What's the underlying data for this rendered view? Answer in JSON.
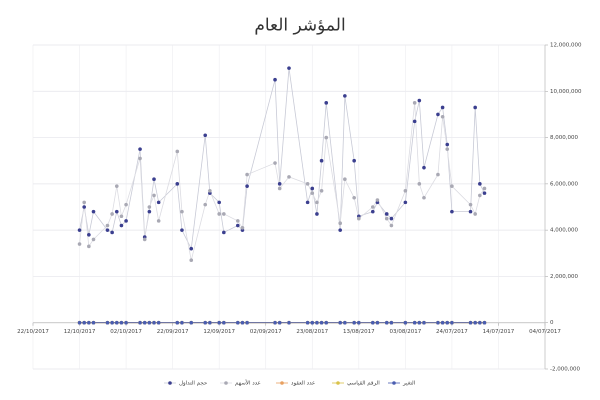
{
  "chart_data": {
    "type": "line",
    "title": "المؤشر العام",
    "x": [
      "2017-10-12",
      "2017-10-11",
      "2017-10-10",
      "2017-10-09",
      "2017-10-06",
      "2017-10-05",
      "2017-10-04",
      "2017-10-03",
      "2017-10-02",
      "2017-09-29",
      "2017-09-28",
      "2017-09-27",
      "2017-09-26",
      "2017-09-25",
      "2017-09-21",
      "2017-09-20",
      "2017-09-18",
      "2017-09-15",
      "2017-09-14",
      "2017-09-12",
      "2017-09-11",
      "2017-09-08",
      "2017-09-07",
      "2017-09-06",
      "2017-08-31",
      "2017-08-30",
      "2017-08-28",
      "2017-08-24",
      "2017-08-23",
      "2017-08-22",
      "2017-08-21",
      "2017-08-20",
      "2017-08-17",
      "2017-08-16",
      "2017-08-14",
      "2017-08-13",
      "2017-08-10",
      "2017-08-09",
      "2017-08-07",
      "2017-08-06",
      "2017-08-03",
      "2017-08-01",
      "2017-07-31",
      "2017-07-30",
      "2017-07-27",
      "2017-07-26",
      "2017-07-25",
      "2017-07-24",
      "2017-07-20",
      "2017-07-19",
      "2017-07-18",
      "2017-07-17"
    ],
    "series": [
      {
        "name": "حجم التداول",
        "color": "#3b3f8f",
        "line_color": "#c8cad6",
        "values": [
          4000000,
          5000000,
          3800000,
          4800000,
          4000000,
          3900000,
          4800000,
          4200000,
          4400000,
          7500000,
          3700000,
          4800000,
          6200000,
          5200000,
          6000000,
          4000000,
          3200000,
          8100000,
          5600000,
          5200000,
          3900000,
          4200000,
          4000000,
          5900000,
          10500000,
          6000000,
          11000000,
          5200000,
          5800000,
          4700000,
          7000000,
          9500000,
          4000000,
          9800000,
          7000000,
          4600000,
          4800000,
          5200000,
          4700000,
          4500000,
          5200000,
          8700000,
          9600000,
          6700000,
          9000000,
          9300000,
          7700000,
          4800000,
          4800000,
          9300000,
          6000000,
          5600000
        ]
      },
      {
        "name": "عدد الأسهم",
        "color": "#a9a9b4",
        "line_color": "#dcdce2",
        "values": [
          3400000,
          5200000,
          3300000,
          3600000,
          4200000,
          4700000,
          5900000,
          4600000,
          5100000,
          7100000,
          3600000,
          5000000,
          5500000,
          4400000,
          7400000,
          4800000,
          2700000,
          5100000,
          5700000,
          4700000,
          4700000,
          4400000,
          4100000,
          6400000,
          6900000,
          5800000,
          6300000,
          6000000,
          5600000,
          5200000,
          5700000,
          8000000,
          4300000,
          6200000,
          5400000,
          4500000,
          5000000,
          5300000,
          4500000,
          4200000,
          5700000,
          9500000,
          6000000,
          5400000,
          6400000,
          8900000,
          7500000,
          5900000,
          5100000,
          4700000,
          5500000,
          5800000
        ]
      },
      {
        "name": "عدد العقود",
        "color": "#e8a060",
        "line_color": "#e8a060",
        "values": [
          0,
          0,
          0,
          0,
          0,
          0,
          0,
          0,
          0,
          0,
          0,
          0,
          0,
          0,
          0,
          0,
          0,
          0,
          0,
          0,
          0,
          0,
          0,
          0,
          0,
          0,
          0,
          0,
          0,
          0,
          0,
          0,
          0,
          0,
          0,
          0,
          0,
          0,
          0,
          0,
          0,
          0,
          0,
          0,
          0,
          0,
          0,
          0,
          0,
          0,
          0,
          0
        ]
      },
      {
        "name": "الرقم القياسي",
        "color": "#d9c24a",
        "line_color": "#d9c24a",
        "values": [
          0,
          0,
          0,
          0,
          0,
          0,
          0,
          0,
          0,
          0,
          0,
          0,
          0,
          0,
          0,
          0,
          0,
          0,
          0,
          0,
          0,
          0,
          0,
          0,
          0,
          0,
          0,
          0,
          0,
          0,
          0,
          0,
          0,
          0,
          0,
          0,
          0,
          0,
          0,
          0,
          0,
          0,
          0,
          0,
          0,
          0,
          0,
          0,
          0,
          0,
          0,
          0
        ]
      },
      {
        "name": "التغير",
        "color": "#4a5db0",
        "line_color": "#4a5db0",
        "values": [
          0,
          0,
          0,
          0,
          0,
          0,
          0,
          0,
          0,
          0,
          0,
          0,
          0,
          0,
          0,
          0,
          0,
          0,
          0,
          0,
          0,
          0,
          0,
          0,
          0,
          0,
          0,
          0,
          0,
          0,
          0,
          0,
          0,
          0,
          0,
          0,
          0,
          0,
          0,
          0,
          0,
          0,
          0,
          0,
          0,
          0,
          0,
          0,
          0,
          0,
          0,
          0
        ]
      }
    ],
    "xlim": [
      "2017-10-22",
      "2017-07-04"
    ],
    "xticks": [
      {
        "value": "2017-10-22",
        "label": "22/10/2017"
      },
      {
        "value": "2017-10-12",
        "label": "12/10/2017"
      },
      {
        "value": "2017-10-02",
        "label": "02/10/2017"
      },
      {
        "value": "2017-09-22",
        "label": "22/09/2017"
      },
      {
        "value": "2017-09-12",
        "label": "12/09/2017"
      },
      {
        "value": "2017-09-02",
        "label": "02/09/2017"
      },
      {
        "value": "2017-08-23",
        "label": "23/08/2017"
      },
      {
        "value": "2017-08-13",
        "label": "13/08/2017"
      },
      {
        "value": "2017-08-03",
        "label": "03/08/2017"
      },
      {
        "value": "2017-07-24",
        "label": "24/07/2017"
      },
      {
        "value": "2017-07-14",
        "label": "14/07/2017"
      },
      {
        "value": "2017-07-04",
        "label": "04/07/2017"
      }
    ],
    "ylim": [
      -2000000,
      12000000
    ],
    "yticks": [
      {
        "value": -2000000,
        "label": "-2,000,000"
      },
      0,
      {
        "value": 2000000,
        "label": "2,000,000"
      },
      {
        "value": 4000000,
        "label": "4,000,000"
      },
      {
        "value": 6000000,
        "label": "6,000,000"
      },
      {
        "value": 8000000,
        "label": "8,000,000"
      },
      {
        "value": 10000000,
        "label": "10,000,000"
      },
      {
        "value": 12000000,
        "label": "12,000,000"
      }
    ],
    "y_axis_side": "right",
    "grid": true
  }
}
